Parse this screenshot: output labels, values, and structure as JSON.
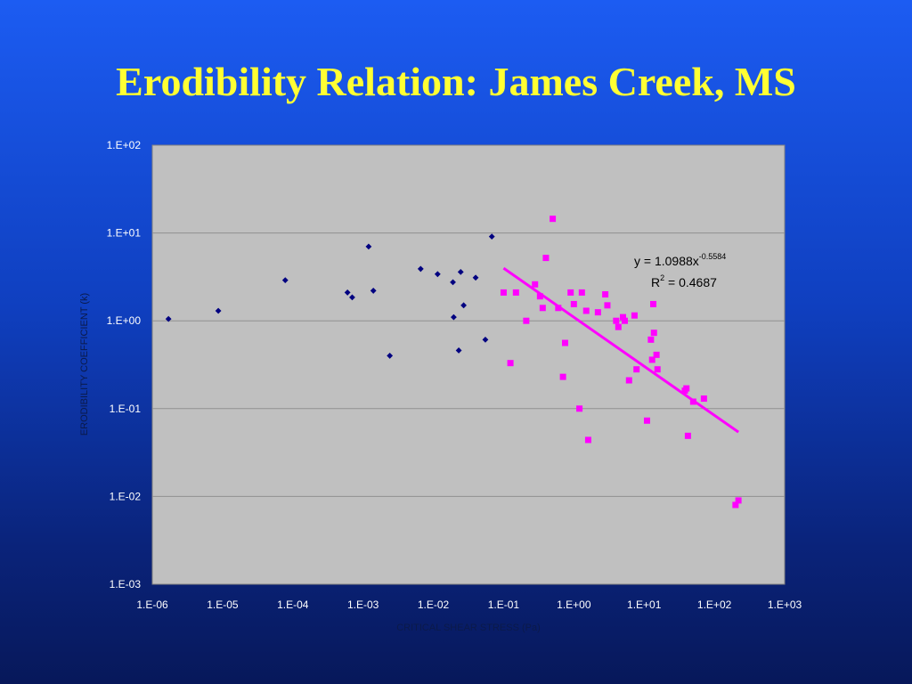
{
  "slide": {
    "title": "Erodibility Relation: James Creek, MS"
  },
  "colors": {
    "title": "#ffff33",
    "plot_area": "#c0c0c0",
    "series_1": "#000080",
    "series_2": "#ff00ff",
    "trendline": "#ff00ff"
  },
  "chart_data": {
    "type": "scatter",
    "xlabel": "CRITICAL SHEAR STRESS (Pa)",
    "ylabel": "ERODIBILITY COEFFICIENT (k)",
    "x_scale": "log",
    "y_scale": "log",
    "xlim": [
      1e-06,
      1000
    ],
    "ylim": [
      0.001,
      100
    ],
    "x_ticks": [
      "1.E-06",
      "1.E-05",
      "1.E-04",
      "1.E-03",
      "1.E-02",
      "1.E-01",
      "1.E+00",
      "1.E+01",
      "1.E+02",
      "1.E+03"
    ],
    "y_ticks": [
      "1.E+02",
      "1.E+01",
      "1.E+00",
      "1.E-01",
      "1.E-02",
      "1.E-03"
    ],
    "grid": "horizontal",
    "series": [
      {
        "marker": "diamond",
        "color": "#000080",
        "points": [
          [
            1.7e-06,
            1.05
          ],
          [
            8.7e-06,
            1.3
          ],
          [
            7.8e-05,
            2.9
          ],
          [
            0.0006,
            2.1
          ],
          [
            0.0007,
            1.85
          ],
          [
            0.0012,
            7.0
          ],
          [
            0.0014,
            2.2
          ],
          [
            0.0024,
            0.4
          ],
          [
            0.0066,
            3.9
          ],
          [
            0.0115,
            3.4
          ],
          [
            0.019,
            2.75
          ],
          [
            0.0195,
            1.1
          ],
          [
            0.023,
            0.46
          ],
          [
            0.0245,
            3.6
          ],
          [
            0.027,
            1.5
          ],
          [
            0.04,
            3.1
          ],
          [
            0.055,
            0.61
          ],
          [
            0.068,
            9.1
          ]
        ]
      },
      {
        "marker": "square",
        "color": "#ff00ff",
        "points": [
          [
            0.1,
            2.1
          ],
          [
            0.125,
            0.33
          ],
          [
            0.15,
            2.1
          ],
          [
            0.21,
            1.0
          ],
          [
            0.28,
            2.6
          ],
          [
            0.33,
            1.9
          ],
          [
            0.36,
            1.4
          ],
          [
            0.4,
            5.2
          ],
          [
            0.5,
            14.5
          ],
          [
            0.6,
            1.4
          ],
          [
            0.7,
            0.23
          ],
          [
            0.75,
            0.56
          ],
          [
            0.9,
            2.1
          ],
          [
            1.0,
            1.55
          ],
          [
            1.2,
            0.1
          ],
          [
            1.3,
            2.1
          ],
          [
            1.5,
            1.3
          ],
          [
            1.6,
            0.044
          ],
          [
            2.2,
            1.25
          ],
          [
            2.8,
            2.0
          ],
          [
            3.0,
            1.5
          ],
          [
            4.0,
            1.0
          ],
          [
            4.3,
            0.85
          ],
          [
            5.0,
            1.1
          ],
          [
            5.3,
            1.0
          ],
          [
            6.1,
            0.21
          ],
          [
            7.3,
            1.15
          ],
          [
            7.8,
            0.28
          ],
          [
            11.0,
            0.073
          ],
          [
            12.5,
            0.61
          ],
          [
            13.0,
            0.36
          ],
          [
            13.5,
            1.55
          ],
          [
            13.8,
            0.73
          ],
          [
            15.0,
            0.41
          ],
          [
            15.5,
            0.28
          ],
          [
            38.0,
            0.16
          ],
          [
            40.0,
            0.17
          ],
          [
            42.0,
            0.049
          ],
          [
            50.0,
            0.12
          ],
          [
            71.0,
            0.13
          ],
          [
            200.0,
            0.008
          ],
          [
            220.0,
            0.009
          ]
        ]
      }
    ],
    "trendline": {
      "type": "power",
      "coefficient": 1.0988,
      "exponent": -0.5584,
      "x_range": [
        0.1,
        220
      ],
      "color": "#ff00ff",
      "equation_base": "y = 1.0988x",
      "equation_exponent": "-0.5584",
      "r2_prefix": "R",
      "r2_sup": "2",
      "r2_value": " = 0.4687"
    }
  }
}
